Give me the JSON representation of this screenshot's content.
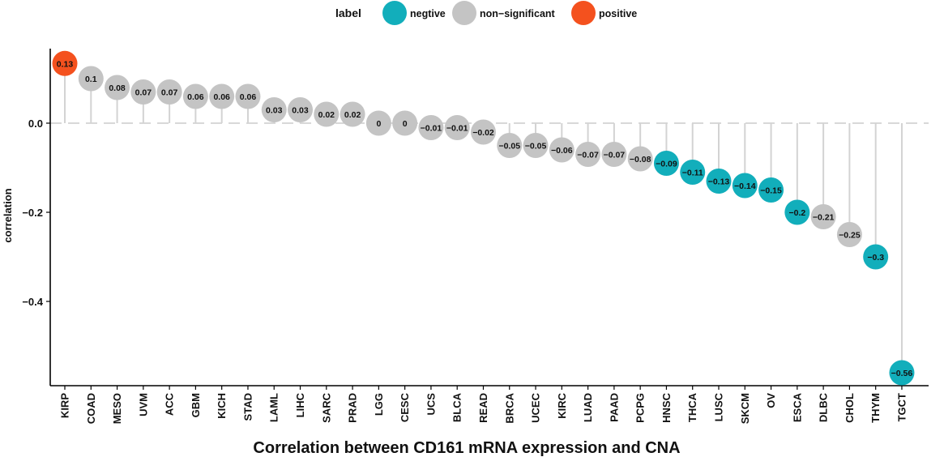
{
  "chart_data": {
    "type": "scatter",
    "xlabel": "Correlation between CD161 mRNA expression and CNA",
    "ylabel": "correlation",
    "ylim": [
      -0.59,
      0.17
    ],
    "yticks": [
      0.0,
      -0.2,
      -0.4
    ],
    "ytick_labels": [
      "0.0",
      "−0.2",
      "−0.4"
    ],
    "reference_line": 0,
    "grid": false,
    "legend": {
      "title": "label",
      "placement": "top",
      "entries": [
        {
          "name": "negtive",
          "color": "#12aebb"
        },
        {
          "name": "non−significant",
          "color": "#c4c4c4"
        },
        {
          "name": "positive",
          "color": "#f4511e"
        }
      ]
    },
    "categories": [
      "KIRP",
      "COAD",
      "MESO",
      "UVM",
      "ACC",
      "GBM",
      "KICH",
      "STAD",
      "LAML",
      "LIHC",
      "SARC",
      "PRAD",
      "LGG",
      "CESC",
      "UCS",
      "BLCA",
      "READ",
      "BRCA",
      "UCEC",
      "KIRC",
      "LUAD",
      "PAAD",
      "PCPG",
      "HNSC",
      "THCA",
      "LUSC",
      "SKCM",
      "OV",
      "ESCA",
      "DLBC",
      "CHOL",
      "THYM",
      "TGCT"
    ],
    "values": [
      0.134,
      0.1,
      0.08,
      0.07,
      0.07,
      0.06,
      0.06,
      0.06,
      0.03,
      0.03,
      0.02,
      0.02,
      0.0,
      0.0,
      -0.01,
      -0.01,
      -0.02,
      -0.05,
      -0.05,
      -0.06,
      -0.07,
      -0.07,
      -0.08,
      -0.09,
      -0.11,
      -0.13,
      -0.14,
      -0.15,
      -0.2,
      -0.21,
      -0.25,
      -0.3,
      -0.56
    ],
    "value_labels": [
      "0.13",
      "0.1",
      "0.08",
      "0.07",
      "0.07",
      "0.06",
      "0.06",
      "0.06",
      "0.03",
      "0.03",
      "0.02",
      "0.02",
      "0",
      "0",
      "−0.01",
      "−0.01",
      "−0.02",
      "−0.05",
      "−0.05",
      "−0.06",
      "−0.07",
      "−0.07",
      "−0.08",
      "−0.09",
      "−0.11",
      "−0.13",
      "−0.14",
      "−0.15",
      "−0.2",
      "−0.21",
      "−0.25",
      "−0.3",
      "−0.56"
    ],
    "labels": [
      "positive",
      "non−significant",
      "non−significant",
      "non−significant",
      "non−significant",
      "non−significant",
      "non−significant",
      "non−significant",
      "non−significant",
      "non−significant",
      "non−significant",
      "non−significant",
      "non−significant",
      "non−significant",
      "non−significant",
      "non−significant",
      "non−significant",
      "non−significant",
      "non−significant",
      "non−significant",
      "non−significant",
      "non−significant",
      "non−significant",
      "negtive",
      "negtive",
      "negtive",
      "negtive",
      "negtive",
      "negtive",
      "non−significant",
      "non−significant",
      "negtive",
      "negtive"
    ]
  }
}
